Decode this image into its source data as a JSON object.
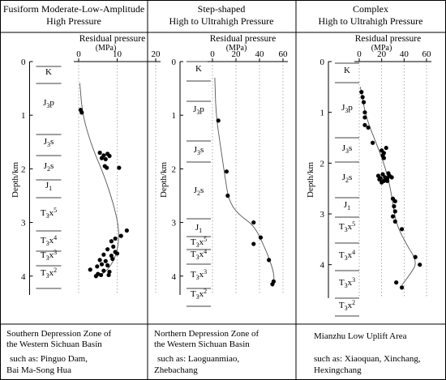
{
  "chart_data": [
    {
      "type": "scatter",
      "title": "Fusiform Moderate-Low-Amplitude",
      "subtitle": "High Pressure",
      "xlabel": "Residual pressure",
      "xunit": "(MPa)",
      "ylabel": "Depth/km",
      "xlim": [
        0,
        20
      ],
      "ylim": [
        0,
        4.2
      ],
      "x_ticks": [
        "0",
        "10",
        "20"
      ],
      "y_ticks": [
        "0",
        "1",
        "2",
        "3",
        "4"
      ],
      "strata": [
        "K",
        "J3p",
        "J3s",
        "J2s",
        "J1",
        "T3x5",
        "T3x4",
        "T3x3",
        "T3x2"
      ],
      "points": [
        {
          "x": 0.5,
          "y": 0.9
        },
        {
          "x": 0.8,
          "y": 0.95
        },
        {
          "x": 5.5,
          "y": 1.7
        },
        {
          "x": 6.5,
          "y": 1.75
        },
        {
          "x": 7.5,
          "y": 1.72
        },
        {
          "x": 6.0,
          "y": 1.8
        },
        {
          "x": 7.0,
          "y": 1.82
        },
        {
          "x": 8.0,
          "y": 1.76
        },
        {
          "x": 6.8,
          "y": 1.95
        },
        {
          "x": 7.3,
          "y": 1.98
        },
        {
          "x": 10.5,
          "y": 1.98
        },
        {
          "x": 12.5,
          "y": 3.15
        },
        {
          "x": 11.0,
          "y": 3.25
        },
        {
          "x": 9.5,
          "y": 3.3
        },
        {
          "x": 8.5,
          "y": 3.35
        },
        {
          "x": 9.0,
          "y": 3.45
        },
        {
          "x": 7.5,
          "y": 3.5
        },
        {
          "x": 9.5,
          "y": 3.55
        },
        {
          "x": 6.5,
          "y": 3.6
        },
        {
          "x": 8.5,
          "y": 3.62
        },
        {
          "x": 10.0,
          "y": 3.58
        },
        {
          "x": 5.5,
          "y": 3.7
        },
        {
          "x": 7.0,
          "y": 3.72
        },
        {
          "x": 8.8,
          "y": 3.68
        },
        {
          "x": 6.0,
          "y": 3.78
        },
        {
          "x": 7.5,
          "y": 3.8
        },
        {
          "x": 4.8,
          "y": 3.82
        },
        {
          "x": 3.0,
          "y": 3.88
        },
        {
          "x": 6.5,
          "y": 3.9
        },
        {
          "x": 8.0,
          "y": 3.92
        },
        {
          "x": 5.0,
          "y": 3.96
        },
        {
          "x": 5.8,
          "y": 3.98
        },
        {
          "x": 4.5,
          "y": 4.0
        },
        {
          "x": 7.8,
          "y": 3.98
        }
      ],
      "trend": [
        {
          "x": 0.3,
          "y": 0.4
        },
        {
          "x": 1.0,
          "y": 1.0
        },
        {
          "x": 3.5,
          "y": 1.6
        },
        {
          "x": 6.5,
          "y": 2.1
        },
        {
          "x": 8.8,
          "y": 2.6
        },
        {
          "x": 10.2,
          "y": 3.0
        },
        {
          "x": 10.5,
          "y": 3.3
        },
        {
          "x": 9.8,
          "y": 3.6
        },
        {
          "x": 8.0,
          "y": 3.85
        },
        {
          "x": 5.5,
          "y": 4.0
        }
      ],
      "caption": "Southern Depression Zone of the Western Sichuan Basin",
      "examples": [
        "such as: Pinguo Dam,",
        "Bai Ma-Song Hua"
      ]
    },
    {
      "type": "scatter",
      "title": "Step-shaped",
      "subtitle": "High to Ultrahigh Pressure",
      "xlabel": "Residual pressure",
      "xunit": "(MPa)",
      "ylabel": "Depth/km",
      "xlim": [
        0,
        60
      ],
      "ylim": [
        0,
        4.2
      ],
      "x_ticks": [
        "0",
        "20",
        "40",
        "60"
      ],
      "y_ticks": [
        "0",
        "1",
        "2",
        "3",
        "4"
      ],
      "strata": [
        "K",
        "J3p",
        "J3s",
        "J2s",
        "J1",
        "T3x5",
        "T3x4",
        "T3x3",
        "T3x2"
      ],
      "points": [
        {
          "x": 5,
          "y": 1.1
        },
        {
          "x": 12,
          "y": 2.05
        },
        {
          "x": 13,
          "y": 2.5
        },
        {
          "x": 35,
          "y": 3.0
        },
        {
          "x": 41,
          "y": 3.28
        },
        {
          "x": 35,
          "y": 3.4
        },
        {
          "x": 48,
          "y": 3.7
        },
        {
          "x": 52,
          "y": 4.1
        },
        {
          "x": 51,
          "y": 4.15
        }
      ],
      "trend": [
        {
          "x": 2,
          "y": 0.3
        },
        {
          "x": 3,
          "y": 1.0
        },
        {
          "x": 7,
          "y": 1.6
        },
        {
          "x": 11,
          "y": 2.2
        },
        {
          "x": 14,
          "y": 2.6
        },
        {
          "x": 22,
          "y": 2.85
        },
        {
          "x": 35,
          "y": 3.05
        },
        {
          "x": 42,
          "y": 3.35
        },
        {
          "x": 48,
          "y": 3.65
        },
        {
          "x": 53,
          "y": 4.0
        },
        {
          "x": 51,
          "y": 4.2
        }
      ],
      "caption": "Northern Depression Zone of the Western Sichuan Basin",
      "examples": [
        "such  as:  Laoguanmiao,",
        "Zhebachang"
      ]
    },
    {
      "type": "scatter",
      "title": "Complex",
      "subtitle": "High to Ultrahigh Pressure",
      "xlabel": "Residual pressure",
      "xunit": "(MPa)",
      "ylabel": "Depth/km",
      "xlim": [
        0,
        60
      ],
      "ylim": [
        0,
        4.5
      ],
      "x_ticks": [
        "0",
        "20",
        "40",
        "60"
      ],
      "y_ticks": [
        "0",
        "1",
        "2",
        "3",
        "4"
      ],
      "strata": [
        "K",
        "J3p",
        "J3s",
        "J2s",
        "J1",
        "T3x5",
        "T3x4",
        "T3x3",
        "T3x2"
      ],
      "points": [
        {
          "x": 2,
          "y": 0.6
        },
        {
          "x": 3,
          "y": 0.7
        },
        {
          "x": 4,
          "y": 0.8
        },
        {
          "x": 5,
          "y": 1.0
        },
        {
          "x": 5,
          "y": 1.1
        },
        {
          "x": 8,
          "y": 1.3
        },
        {
          "x": 5,
          "y": 1.25
        },
        {
          "x": 12,
          "y": 1.6
        },
        {
          "x": 20,
          "y": 1.75
        },
        {
          "x": 22,
          "y": 1.8
        },
        {
          "x": 21,
          "y": 1.85
        },
        {
          "x": 24,
          "y": 1.7
        },
        {
          "x": 22,
          "y": 1.9
        },
        {
          "x": 17,
          "y": 2.25
        },
        {
          "x": 19,
          "y": 2.3
        },
        {
          "x": 21,
          "y": 2.22
        },
        {
          "x": 23,
          "y": 2.28
        },
        {
          "x": 25,
          "y": 2.3
        },
        {
          "x": 27,
          "y": 2.25
        },
        {
          "x": 29,
          "y": 2.28
        },
        {
          "x": 22,
          "y": 2.35
        },
        {
          "x": 25,
          "y": 2.35
        },
        {
          "x": 18,
          "y": 2.32
        },
        {
          "x": 26,
          "y": 2.2
        },
        {
          "x": 20,
          "y": 2.38
        },
        {
          "x": 30,
          "y": 2.7
        },
        {
          "x": 32,
          "y": 2.75
        },
        {
          "x": 31,
          "y": 2.85
        },
        {
          "x": 32,
          "y": 2.95
        },
        {
          "x": 30,
          "y": 3.05
        },
        {
          "x": 32,
          "y": 3.15
        },
        {
          "x": 38,
          "y": 3.3
        },
        {
          "x": 50,
          "y": 3.85
        },
        {
          "x": 54,
          "y": 4.0
        },
        {
          "x": 33,
          "y": 4.35
        },
        {
          "x": 38,
          "y": 4.45
        }
      ],
      "trend": [
        {
          "x": 1,
          "y": 0.5
        },
        {
          "x": 6,
          "y": 1.1
        },
        {
          "x": 15,
          "y": 1.6
        },
        {
          "x": 22,
          "y": 2.0
        },
        {
          "x": 27,
          "y": 2.4
        },
        {
          "x": 30,
          "y": 2.8
        },
        {
          "x": 33,
          "y": 3.2
        },
        {
          "x": 42,
          "y": 3.6
        },
        {
          "x": 52,
          "y": 3.95
        },
        {
          "x": 45,
          "y": 4.2
        },
        {
          "x": 38,
          "y": 4.4
        }
      ],
      "caption": "Mianzhu Low Uplift Area",
      "examples": [
        "such as: Xiaoquan, Xinchang,",
        "Hexingchang"
      ]
    }
  ]
}
